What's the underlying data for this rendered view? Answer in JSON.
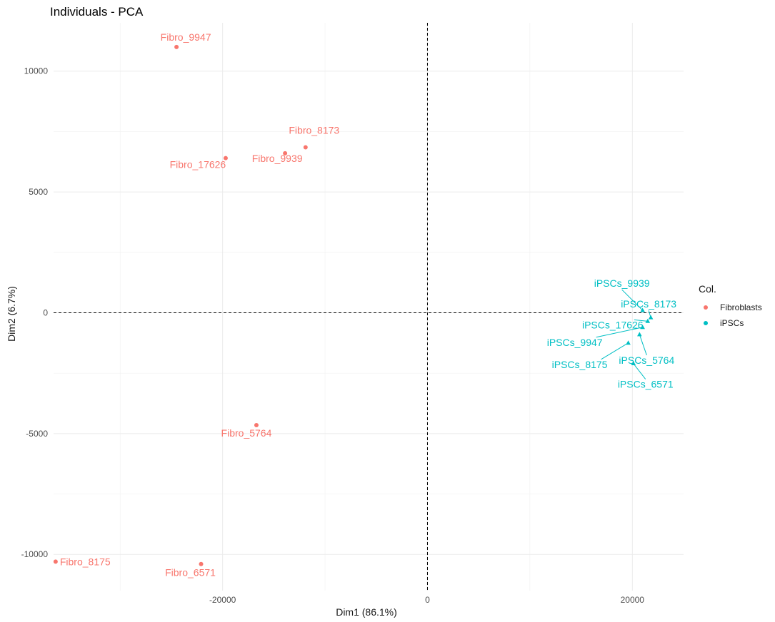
{
  "chart_data": {
    "type": "scatter",
    "title": "Individuals - PCA",
    "xlabel": "Dim1 (86.1%)",
    "ylabel": "Dim2 (6.7%)",
    "xlim": [
      -36500,
      25000
    ],
    "ylim": [
      -11500,
      12000
    ],
    "xticks": [
      -20000,
      0,
      20000
    ],
    "yticks": [
      -10000,
      -5000,
      0,
      5000,
      10000
    ],
    "xtick_labels": [
      "-20000",
      "0",
      "20000"
    ],
    "ytick_labels": [
      "-10000",
      "-5000",
      "0",
      "5000",
      "10000"
    ],
    "grid": true,
    "reference_lines": {
      "x": 0,
      "y": 0,
      "style": "dashed"
    },
    "legend": {
      "title": "Col.",
      "placement": "right",
      "entries": [
        {
          "label": "Fibroblasts",
          "color": "#F8766D"
        },
        {
          "label": "iPSCs",
          "color": "#00BFC4"
        }
      ]
    },
    "series": [
      {
        "name": "Fibroblasts",
        "marker": "circle",
        "color": "#F8766D",
        "points": [
          {
            "label": "Fibro_9947",
            "x": -24500,
            "y": 11000
          },
          {
            "label": "Fibro_8173",
            "x": -11900,
            "y": 6850
          },
          {
            "label": "Fibro_9939",
            "x": -13900,
            "y": 6600
          },
          {
            "label": "Fibro_17626",
            "x": -19700,
            "y": 6400
          },
          {
            "label": "Fibro_5764",
            "x": -16700,
            "y": -4650
          },
          {
            "label": "Fibro_8175",
            "x": -36300,
            "y": -10300
          },
          {
            "label": "Fibro_6571",
            "x": -22100,
            "y": -10400
          }
        ]
      },
      {
        "name": "iPSCs",
        "marker": "triangle",
        "color": "#00BFC4",
        "points": [
          {
            "label": "iPSCs_9939",
            "x": 21000,
            "y": 100
          },
          {
            "label": "iPSCs_8173",
            "x": 21800,
            "y": -200
          },
          {
            "label": "iPSCs_17626",
            "x": 21500,
            "y": -350
          },
          {
            "label": "iPSCs_9947",
            "x": 21000,
            "y": -600
          },
          {
            "label": "iPSCs_5764",
            "x": 20700,
            "y": -900
          },
          {
            "label": "iPSCs_8175",
            "x": 19600,
            "y": -1250
          },
          {
            "label": "iPSCs_6571",
            "x": 20100,
            "y": -2100
          }
        ]
      }
    ]
  }
}
